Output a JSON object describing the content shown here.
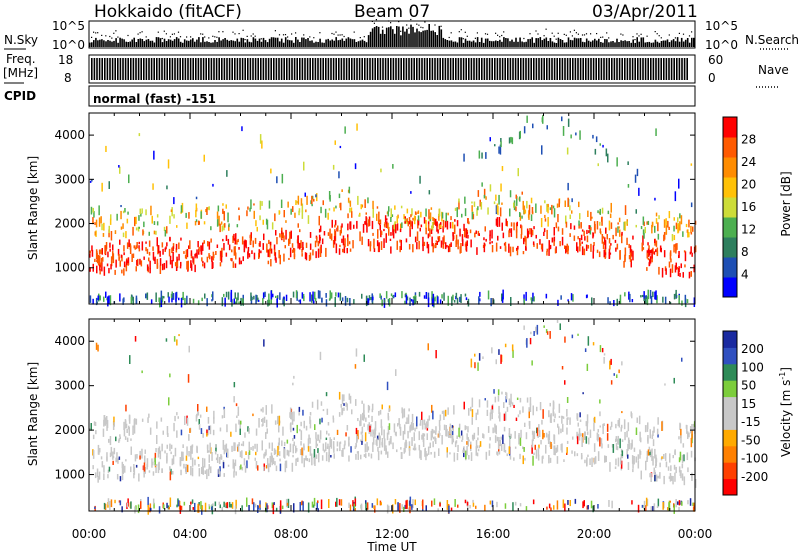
{
  "header": {
    "station": "Hokkaido (fitACF)",
    "beam": "Beam 07",
    "date": "03/Apr/2011"
  },
  "top_panels": {
    "nsky_label": "N.Sky",
    "nsky_ticks": [
      "10^5",
      "10^0"
    ],
    "nsearch_label": "N.Search",
    "nsearch_ticks": [
      "10^5",
      "10^0"
    ],
    "freq_label": "Freq.",
    "freq_unit": "[MHz]",
    "freq_ticks": [
      "18",
      "8"
    ],
    "nave_label": "Nave",
    "nave_ticks": [
      "60",
      "0"
    ],
    "cpid_label": "CPID",
    "cpid_value": "normal (fast) -151"
  },
  "colors": {
    "power_scale": [
      "#0000ff",
      "#1e4fb4",
      "#2e7f5e",
      "#4caf50",
      "#cddc39",
      "#ffc107",
      "#ff8c00",
      "#ff5a00",
      "#ff0000"
    ],
    "velocity_scale": [
      "#ff0000",
      "#ff4000",
      "#ff8000",
      "#ffaa00",
      "#c8c8c8",
      "#c8c8c8",
      "#7ccd3c",
      "#2e8b57",
      "#3050c0",
      "#1a2aa0"
    ]
  },
  "chart_data": [
    {
      "type": "heatmap",
      "name": "power",
      "ylabel": "Slant Range [km]",
      "yticks": [
        "1000",
        "2000",
        "3000",
        "4000"
      ],
      "ylim": [
        180,
        4500
      ],
      "xlim": [
        "00:00",
        "24:00"
      ],
      "colorbar_label": "Power [dB]",
      "colorbar_ticks": [
        "4",
        "8",
        "12",
        "16",
        "20",
        "24",
        "28"
      ],
      "colorbar_range": [
        0,
        30
      ],
      "bands": [
        {
          "x": [
            0,
            3,
            6,
            8,
            10,
            12,
            14,
            16,
            18,
            20,
            22,
            24
          ],
          "y": [
            1200,
            1300,
            1350,
            1500,
            1700,
            1750,
            1750,
            1700,
            1650,
            1600,
            1300,
            1100
          ],
          "level": "high"
        },
        {
          "x": [
            0,
            4,
            8,
            10,
            12,
            14,
            16,
            18,
            20,
            22,
            24
          ],
          "y": [
            2000,
            2100,
            2200,
            2500,
            2200,
            2100,
            2600,
            2300,
            2100,
            2000,
            1900
          ],
          "level": "mid"
        },
        {
          "x": [
            16,
            17,
            18,
            19,
            20,
            21
          ],
          "y": [
            3600,
            4100,
            4300,
            4200,
            3800,
            3200
          ],
          "level": "low"
        }
      ]
    },
    {
      "type": "heatmap",
      "name": "velocity",
      "ylabel": "Slant Range [km]",
      "yticks": [
        "1000",
        "2000",
        "3000",
        "4000"
      ],
      "ylim": [
        180,
        4500
      ],
      "xlim": [
        "00:00",
        "24:00"
      ],
      "xticks": [
        "00:00",
        "04:00",
        "08:00",
        "12:00",
        "16:00",
        "20:00",
        "00:00"
      ],
      "xlabel": "Time UT",
      "colorbar_label": "Velocity [m s",
      "colorbar_label_sup": "-1",
      "colorbar_label_end": "]",
      "colorbar_ticks": [
        "-200",
        "-100",
        "-50",
        "-15",
        "15",
        "50",
        "100",
        "200"
      ],
      "colorbar_range": [
        -250,
        250
      ]
    }
  ]
}
